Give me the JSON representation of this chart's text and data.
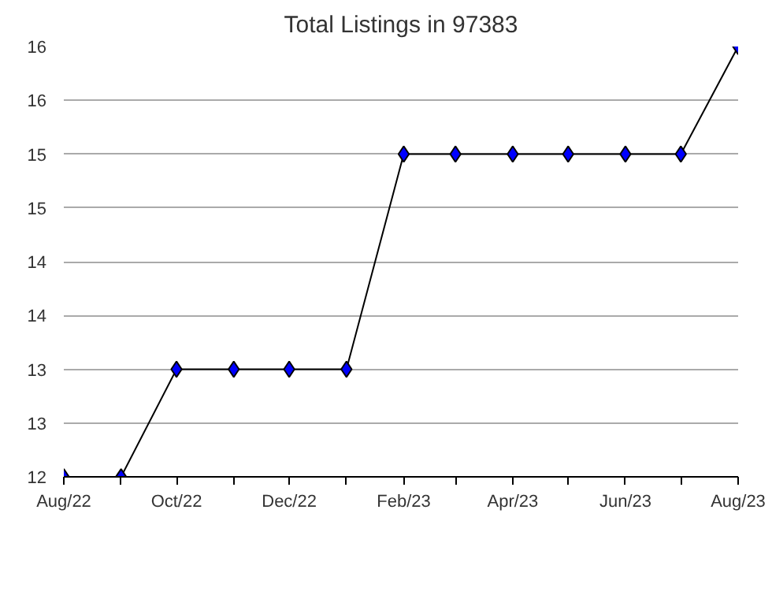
{
  "chart_data": {
    "type": "line",
    "title": "Total Listings in 97383",
    "x": [
      "2022-08",
      "2022-09",
      "2022-10",
      "2022-11",
      "2022-12",
      "2023-01",
      "2023-02",
      "2023-03",
      "2023-04",
      "2023-05",
      "2023-06",
      "2023-07",
      "2023-08"
    ],
    "series": [
      {
        "color": "#0000ff",
        "values": [
          12,
          12,
          13,
          13,
          13,
          13,
          15,
          15,
          15,
          15,
          15,
          15,
          16
        ]
      }
    ],
    "xlim": [
      "2022-08",
      "2023-08"
    ],
    "xticks": [
      {
        "value": "2022-08",
        "label": "Aug/22"
      },
      {
        "value": "2022-09",
        "label": null
      },
      {
        "value": "2022-10",
        "label": "Oct/22"
      },
      {
        "value": "2022-11",
        "label": null
      },
      {
        "value": "2022-12",
        "label": "Dec/22"
      },
      {
        "value": "2023-01",
        "label": null
      },
      {
        "value": "2023-02",
        "label": "Feb/23"
      },
      {
        "value": "2023-03",
        "label": null
      },
      {
        "value": "2023-04",
        "label": "Apr/23"
      },
      {
        "value": "2023-05",
        "label": null
      },
      {
        "value": "2023-06",
        "label": "Jun/23"
      },
      {
        "value": "2023-07",
        "label": null
      },
      {
        "value": "2023-08",
        "label": "Aug/23"
      }
    ],
    "ylim": [
      12,
      16
    ],
    "yticks": [
      12,
      {
        "value": 12.5,
        "label": "13"
      },
      13,
      {
        "value": 13.5,
        "label": "14"
      },
      14,
      {
        "value": 14.5,
        "label": "15"
      },
      15,
      {
        "value": 15.5,
        "label": "16"
      },
      16
    ],
    "grid": "y",
    "marker": "diamond",
    "line_style": "solid"
  }
}
